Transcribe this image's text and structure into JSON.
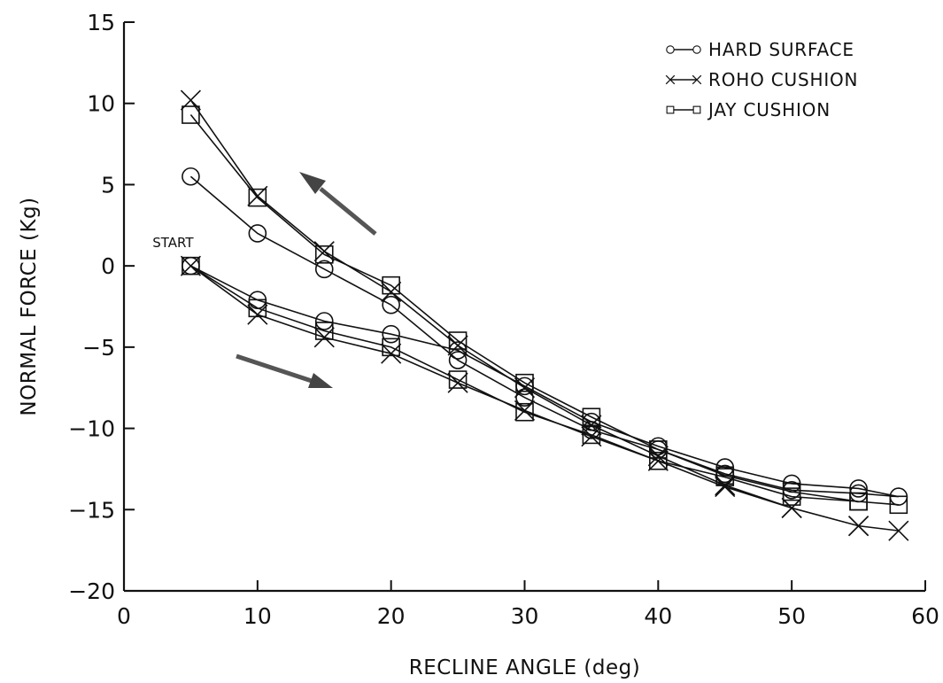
{
  "chart_data": {
    "type": "line",
    "title": "",
    "xlabel": "RECLINE ANGLE (deg)",
    "ylabel": "NORMAL FORCE (Kg)",
    "xlim": [
      0,
      60
    ],
    "ylim": [
      -20,
      15
    ],
    "xticks": [
      0,
      10,
      20,
      30,
      40,
      50,
      60
    ],
    "yticks": [
      -20,
      -15,
      -10,
      -5,
      0,
      5,
      10,
      15
    ],
    "grid": false,
    "legend_position": "top-right",
    "series": [
      {
        "name": "HARD SURFACE",
        "marker": "circle",
        "points": [
          [
            5,
            0
          ],
          [
            10,
            -2.1
          ],
          [
            15,
            -3.4
          ],
          [
            20,
            -4.2
          ],
          [
            25,
            -5.2
          ],
          [
            30,
            -7.4
          ],
          [
            35,
            -9.6
          ],
          [
            40,
            -11.1
          ],
          [
            45,
            -12.4
          ],
          [
            50,
            -13.4
          ],
          [
            55,
            -13.7
          ],
          [
            58,
            -14.2
          ],
          [
            55,
            -14.0
          ],
          [
            50,
            -13.8
          ],
          [
            45,
            -12.8
          ],
          [
            40,
            -11.3
          ],
          [
            35,
            -10.1
          ],
          [
            30,
            -8.1
          ],
          [
            25,
            -5.8
          ],
          [
            20,
            -2.4
          ],
          [
            15,
            -0.2
          ],
          [
            10,
            2.0
          ],
          [
            5,
            5.5
          ]
        ]
      },
      {
        "name": "ROHO CUSHION",
        "marker": "x",
        "points": [
          [
            5,
            0
          ],
          [
            10,
            -3.0
          ],
          [
            15,
            -4.4
          ],
          [
            20,
            -5.4
          ],
          [
            25,
            -7.2
          ],
          [
            30,
            -8.9
          ],
          [
            35,
            -10.5
          ],
          [
            40,
            -12.0
          ],
          [
            45,
            -13.6
          ],
          [
            50,
            -14.9
          ],
          [
            55,
            -16.0
          ],
          [
            58,
            -16.3
          ],
          [
            55,
            -16.0
          ],
          [
            50,
            -14.9
          ],
          [
            45,
            -13.5
          ],
          [
            40,
            -11.7
          ],
          [
            35,
            -9.8
          ],
          [
            30,
            -7.5
          ],
          [
            25,
            -4.9
          ],
          [
            20,
            -1.6
          ],
          [
            15,
            0.9
          ],
          [
            10,
            4.3
          ],
          [
            5,
            10.2
          ]
        ]
      },
      {
        "name": "JAY CUSHION",
        "marker": "square",
        "points": [
          [
            5,
            0
          ],
          [
            10,
            -2.6
          ],
          [
            15,
            -4.0
          ],
          [
            20,
            -5.0
          ],
          [
            25,
            -7.0
          ],
          [
            30,
            -9.0
          ],
          [
            35,
            -10.4
          ],
          [
            40,
            -12.0
          ],
          [
            45,
            -13.0
          ],
          [
            50,
            -14.2
          ],
          [
            55,
            -14.5
          ],
          [
            58,
            -14.7
          ],
          [
            55,
            -14.5
          ],
          [
            50,
            -13.9
          ],
          [
            45,
            -12.9
          ],
          [
            40,
            -11.3
          ],
          [
            35,
            -9.3
          ],
          [
            30,
            -7.2
          ],
          [
            25,
            -4.6
          ],
          [
            20,
            -1.2
          ],
          [
            15,
            0.7
          ],
          [
            10,
            4.2
          ],
          [
            5,
            9.3
          ]
        ]
      }
    ],
    "annotations": [
      {
        "text": "START",
        "x": 5,
        "y": 0
      }
    ]
  }
}
